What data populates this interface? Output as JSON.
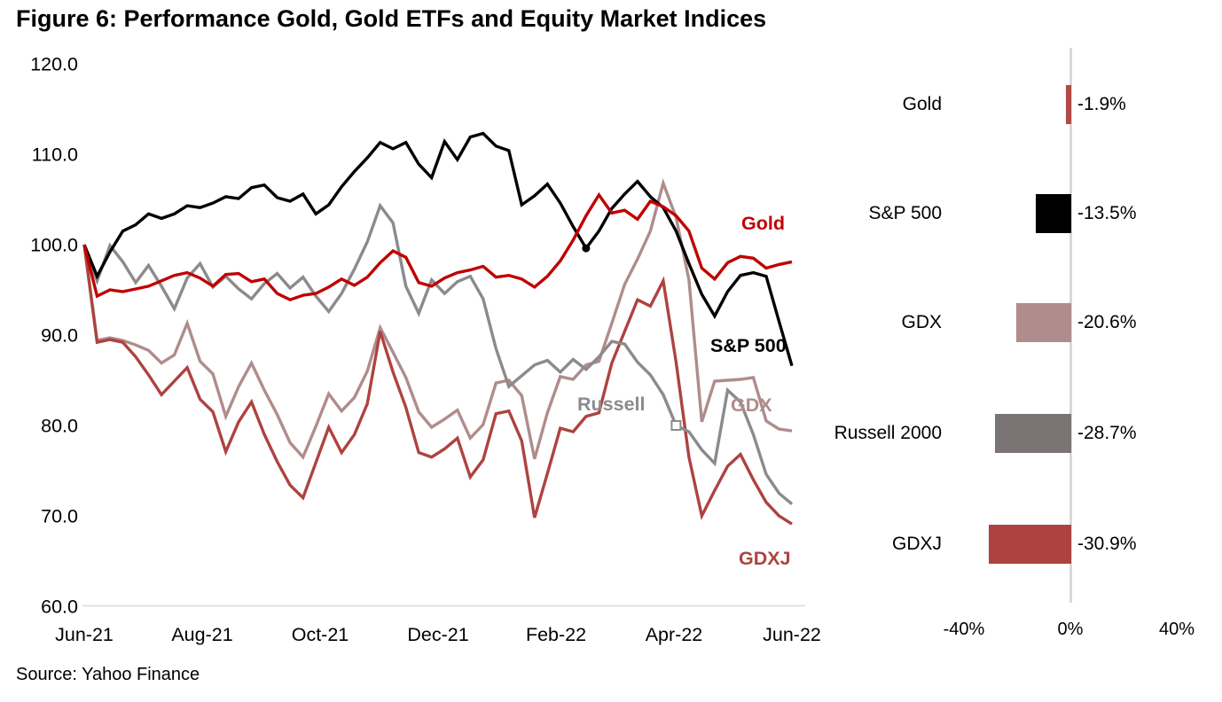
{
  "title": "Figure 6: Performance Gold, Gold ETFs and Equity Market Indices",
  "source": "Source: Yahoo Finance",
  "colors": {
    "axis_line": "#d9d9d9",
    "gold": "#c00000",
    "sp500": "#000000",
    "gdx": "#b08c8c",
    "russell": "#8c8a8a",
    "gdxj": "#ad4340"
  },
  "chart_data": [
    {
      "type": "line",
      "x_tick_labels": [
        "Jun-21",
        "Aug-21",
        "Oct-21",
        "Dec-21",
        "Feb-22",
        "Apr-22",
        "Jun-22"
      ],
      "y_tick_labels": [
        "120.0",
        "110.0",
        "100.0",
        "90.0",
        "80.0",
        "70.0",
        "60.0"
      ],
      "ylim": [
        60,
        120
      ],
      "grid": false,
      "legend_position": "inline-labels",
      "series": [
        {
          "id": "gdx",
          "name": "GDX",
          "color": "#b08c8c",
          "values": [
            100,
            89.4,
            89.7,
            89.4,
            88.9,
            88.3,
            86.9,
            87.8,
            91.3,
            87.1,
            85.7,
            81.0,
            84.3,
            86.9,
            83.9,
            81.2,
            78.1,
            76.5,
            79.9,
            83.5,
            81.6,
            83.1,
            86.0,
            90.8,
            88.1,
            85.3,
            81.5,
            79.8,
            80.7,
            81.7,
            78.6,
            80.1,
            84.7,
            85.0,
            83.3,
            76.3,
            81.4,
            85.4,
            85.1,
            86.7,
            87.1,
            91.3,
            95.6,
            98.4,
            101.5,
            106.8,
            103.0,
            96.1,
            80.4,
            84.9,
            85.0,
            85.1,
            85.3,
            80.5,
            79.6,
            79.4
          ]
        },
        {
          "id": "gdxj",
          "name": "GDXJ",
          "color": "#ad4340",
          "values": [
            100,
            89.2,
            89.5,
            89.2,
            87.6,
            85.6,
            83.4,
            84.9,
            86.4,
            82.9,
            81.5,
            77.1,
            80.4,
            82.6,
            79.0,
            76.0,
            73.4,
            72.0,
            75.9,
            79.8,
            77.0,
            79.0,
            82.4,
            90.4,
            85.9,
            82.0,
            77.0,
            76.5,
            77.4,
            78.6,
            74.3,
            76.2,
            81.3,
            81.6,
            78.3,
            69.8,
            74.7,
            79.7,
            79.3,
            81.0,
            81.4,
            86.9,
            90.4,
            93.9,
            93.2,
            96.0,
            87.0,
            76.5,
            70.0,
            72.8,
            75.5,
            76.8,
            74.0,
            71.5,
            70.0,
            69.1
          ]
        },
        {
          "id": "russell",
          "name": "Russell",
          "color": "#8c8a8a",
          "values": [
            100,
            96.0,
            99.9,
            98.1,
            95.8,
            97.7,
            95.4,
            92.9,
            96.3,
            97.9,
            95.3,
            96.5,
            95.1,
            94.0,
            95.7,
            96.8,
            95.2,
            96.4,
            94.3,
            92.6,
            94.6,
            97.3,
            100.3,
            104.3,
            102.4,
            95.4,
            92.4,
            96.1,
            94.6,
            95.9,
            96.5,
            94.0,
            88.5,
            84.3,
            85.5,
            86.7,
            87.2,
            85.9,
            87.3,
            86.2,
            87.6,
            89.3,
            89.0,
            87.0,
            85.6,
            83.4,
            80.0,
            79.3,
            77.3,
            75.8,
            83.9,
            82.6,
            79.0,
            74.6,
            72.5,
            71.3
          ]
        },
        {
          "id": "sp500",
          "name": "S&P 500",
          "color": "#000000",
          "values": [
            100,
            96.5,
            99.2,
            101.5,
            102.2,
            103.4,
            102.9,
            103.4,
            104.3,
            104.1,
            104.6,
            105.3,
            105.1,
            106.3,
            106.6,
            105.2,
            104.8,
            105.6,
            103.4,
            104.4,
            106.4,
            108.1,
            109.6,
            111.3,
            110.6,
            111.3,
            108.9,
            107.4,
            111.4,
            109.4,
            111.9,
            112.3,
            110.9,
            110.4,
            104.4,
            105.4,
            106.7,
            104.6,
            102.0,
            99.6,
            101.5,
            104.0,
            105.6,
            107.0,
            105.3,
            104.1,
            101.5,
            97.9,
            94.5,
            92.1,
            94.8,
            96.6,
            96.9,
            96.5,
            91.5,
            86.6
          ]
        },
        {
          "id": "gold",
          "name": "Gold",
          "color": "#c00000",
          "values": [
            100,
            94.3,
            95.0,
            94.8,
            95.1,
            95.4,
            96.0,
            96.6,
            96.9,
            96.3,
            95.4,
            96.7,
            96.8,
            95.9,
            96.2,
            94.6,
            93.9,
            94.4,
            94.6,
            95.3,
            96.2,
            95.5,
            96.4,
            98.0,
            99.3,
            98.6,
            95.8,
            95.4,
            96.3,
            96.9,
            97.2,
            97.6,
            96.4,
            96.6,
            96.2,
            95.3,
            96.5,
            98.2,
            100.5,
            103.2,
            105.5,
            103.5,
            103.8,
            102.8,
            104.8,
            104.2,
            103.2,
            101.5,
            97.4,
            96.2,
            98.0,
            98.7,
            98.5,
            97.4,
            97.8,
            98.1
          ]
        }
      ],
      "markers": [
        {
          "series": "sp500",
          "index": 39,
          "shape": "dot"
        },
        {
          "series": "russell",
          "index": 46,
          "shape": "square"
        }
      ]
    },
    {
      "type": "bar",
      "orientation": "horizontal",
      "categories": [
        "Gold",
        "S&P 500",
        "GDX",
        "Russell 2000",
        "GDXJ"
      ],
      "values": [
        -1.9,
        -13.5,
        -20.6,
        -28.7,
        -30.9
      ],
      "value_labels": [
        "-1.9%",
        "-13.5%",
        "-20.6%",
        "-28.7%",
        "-30.9%"
      ],
      "bar_colors": [
        "#b04a47",
        "#000000",
        "#b08c8c",
        "#7b7474",
        "#ad4340"
      ],
      "x_tick_labels": [
        "-40%",
        "0%",
        "40%"
      ],
      "x_tick_values": [
        -40,
        0,
        40
      ],
      "xlim": [
        -40,
        40
      ]
    }
  ]
}
